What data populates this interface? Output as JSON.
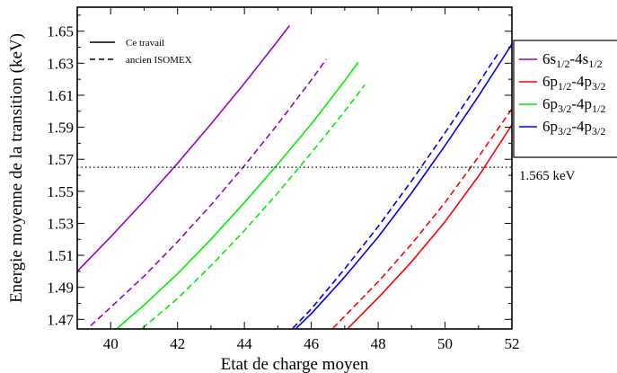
{
  "chart_data": {
    "type": "line",
    "xlabel": "Etat de charge moyen",
    "ylabel": "Energie moyenne de la transition (keV)",
    "xlim": [
      39,
      52
    ],
    "ylim": [
      1.464,
      1.665
    ],
    "xticks": [
      40,
      42,
      44,
      46,
      48,
      50,
      52
    ],
    "yticks": [
      1.47,
      1.49,
      1.51,
      1.53,
      1.55,
      1.57,
      1.59,
      1.61,
      1.63,
      1.65
    ],
    "grid": false,
    "style_legend": {
      "location": "top-left",
      "entries": [
        {
          "label": "Ce travail",
          "dash": "solid"
        },
        {
          "label": "ancien ISOMEX",
          "dash": "dashed"
        }
      ]
    },
    "reference_line": {
      "y": 1.565,
      "label": "1.565 keV",
      "style": "dotted"
    },
    "transition_legend": {
      "location": "right-outside",
      "entries": [
        {
          "base": "6s",
          "sub1": "1/2",
          "mid": "-4s",
          "sub2": "1/2",
          "color": "#9900cc"
        },
        {
          "base": "6p",
          "sub1": "1/2",
          "mid": "-4p",
          "sub2": "3/2",
          "color": "#ff0000"
        },
        {
          "base": "6p",
          "sub1": "3/2",
          "mid": "-4p",
          "sub2": "1/2",
          "color": "#00ee00"
        },
        {
          "base": "6p",
          "sub1": "3/2",
          "mid": "-4p",
          "sub2": "3/2",
          "color": "#0000ee"
        }
      ]
    },
    "series": [
      {
        "transition": 0,
        "dash": "solid",
        "x": [
          39.0,
          40.0,
          41.0,
          42.0,
          43.0,
          44.0,
          45.0,
          45.35
        ],
        "y": [
          1.5,
          1.5215,
          1.544,
          1.5675,
          1.592,
          1.6175,
          1.644,
          1.6535
        ]
      },
      {
        "transition": 0,
        "dash": "dashed",
        "x": [
          39.4,
          40.0,
          41.0,
          42.0,
          43.0,
          44.0,
          45.0,
          46.0,
          46.45
        ],
        "y": [
          1.466,
          1.4775,
          1.497,
          1.5185,
          1.5415,
          1.566,
          1.592,
          1.6195,
          1.6325
        ]
      },
      {
        "transition": 2,
        "dash": "solid",
        "x": [
          40.2,
          41.0,
          42.0,
          43.0,
          44.0,
          45.0,
          46.0,
          47.0,
          47.4
        ],
        "y": [
          1.4645,
          1.479,
          1.4985,
          1.52,
          1.543,
          1.567,
          1.592,
          1.619,
          1.6305
        ]
      },
      {
        "transition": 2,
        "dash": "dashed",
        "x": [
          40.95,
          42.0,
          43.0,
          44.0,
          45.0,
          46.0,
          47.0,
          47.6
        ],
        "y": [
          1.4645,
          1.483,
          1.5035,
          1.5255,
          1.549,
          1.574,
          1.6,
          1.6165
        ]
      },
      {
        "transition": 3,
        "dash": "solid",
        "x": [
          45.55,
          46.0,
          47.0,
          48.0,
          49.0,
          50.0,
          51.0,
          52.0
        ],
        "y": [
          1.4645,
          1.4735,
          1.4965,
          1.5215,
          1.549,
          1.5785,
          1.6095,
          1.642
        ]
      },
      {
        "transition": 3,
        "dash": "dashed",
        "x": [
          45.45,
          46.0,
          47.0,
          48.0,
          49.0,
          50.0,
          51.0,
          51.6
        ],
        "y": [
          1.4645,
          1.4765,
          1.5015,
          1.528,
          1.5565,
          1.5865,
          1.6175,
          1.6365
        ]
      },
      {
        "transition": 1,
        "dash": "solid",
        "x": [
          47.1,
          48.0,
          49.0,
          50.0,
          51.0,
          52.0
        ],
        "y": [
          1.4645,
          1.4835,
          1.506,
          1.531,
          1.5595,
          1.5915
        ]
      },
      {
        "transition": 1,
        "dash": "dashed",
        "x": [
          46.65,
          47.0,
          48.0,
          49.0,
          50.0,
          51.0,
          52.0
        ],
        "y": [
          1.4645,
          1.472,
          1.4935,
          1.517,
          1.543,
          1.5715,
          1.6015
        ]
      }
    ]
  }
}
